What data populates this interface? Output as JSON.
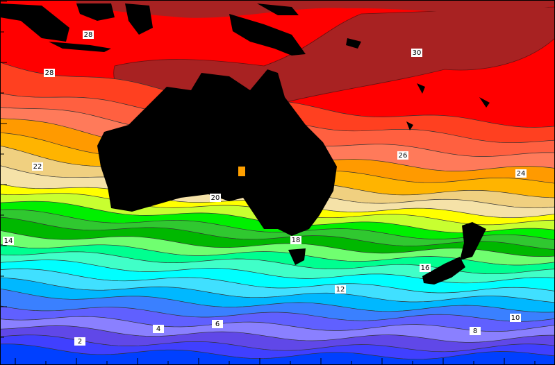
{
  "contour_labels": [
    {
      "text": 28
    },
    {
      "text": 28
    },
    {
      "text": 30
    },
    {
      "text": 26
    },
    {
      "text": 24
    },
    {
      "text": 22
    },
    {
      "text": 20
    },
    {
      "text": 18
    },
    {
      "text": 16
    },
    {
      "text": 14
    },
    {
      "text": 12
    },
    {
      "text": 10
    },
    {
      "text": 8
    },
    {
      "text": 6
    },
    {
      "text": 4
    },
    {
      "text": 2
    }
  ]
}
